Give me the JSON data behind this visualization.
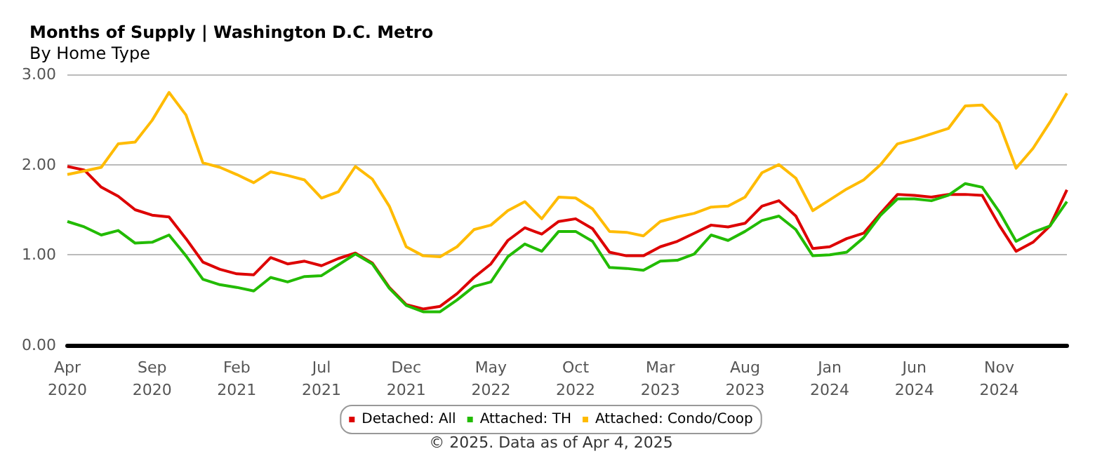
{
  "chart_data": {
    "type": "line",
    "title": "Months of Supply | Washington D.C. Metro",
    "subtitle": "By Home Type",
    "annotations": [
      "© 2025. Data as of Apr 4, 2025"
    ],
    "categories": [
      "Apr 2020",
      null,
      null,
      null,
      null,
      "Sep 2020",
      null,
      null,
      null,
      null,
      "Feb 2021",
      null,
      null,
      null,
      null,
      "Jul 2021",
      null,
      null,
      null,
      null,
      "Dec 2021",
      null,
      null,
      null,
      null,
      "May 2022",
      null,
      null,
      null,
      null,
      "Oct 2022",
      null,
      null,
      null,
      null,
      "Mar 2023",
      null,
      null,
      null,
      null,
      "Aug 2023",
      null,
      null,
      null,
      null,
      "Jan 2024",
      null,
      null,
      null,
      null,
      "Jun 2024",
      null,
      null,
      null,
      null,
      "Nov 2024",
      null,
      null,
      null,
      null
    ],
    "ylim": [
      0,
      3
    ],
    "yticks": [
      {
        "value": 0,
        "label": "0.00"
      },
      {
        "value": 1,
        "label": "1.00"
      },
      {
        "value": 2,
        "label": "2.00"
      },
      {
        "value": 3,
        "label": "3.00"
      }
    ],
    "grid": "y",
    "legend": "bottom",
    "marker": "none",
    "line_style": "solid",
    "series": [
      {
        "name": "Detached: All",
        "color": "#dd0000",
        "values": [
          1.98,
          1.94,
          1.75,
          1.65,
          1.5,
          1.44,
          1.42,
          1.18,
          0.92,
          0.84,
          0.79,
          0.78,
          0.97,
          0.9,
          0.93,
          0.88,
          0.96,
          1.02,
          0.91,
          0.64,
          0.45,
          0.4,
          0.43,
          0.57,
          0.75,
          0.9,
          1.16,
          1.3,
          1.23,
          1.37,
          1.4,
          1.29,
          1.03,
          0.99,
          0.99,
          1.09,
          1.15,
          1.24,
          1.33,
          1.31,
          1.35,
          1.54,
          1.6,
          1.43,
          1.07,
          1.09,
          1.18,
          1.24,
          1.46,
          1.67,
          1.66,
          1.64,
          1.67,
          1.67,
          1.66,
          1.33,
          1.04,
          1.14,
          1.32,
          1.72
        ]
      },
      {
        "name": "Attached: TH",
        "color": "#22bb00",
        "values": [
          1.37,
          1.31,
          1.22,
          1.27,
          1.13,
          1.14,
          1.22,
          0.99,
          0.73,
          0.67,
          0.64,
          0.6,
          0.75,
          0.7,
          0.76,
          0.77,
          0.89,
          1.01,
          0.9,
          0.63,
          0.44,
          0.37,
          0.37,
          0.5,
          0.65,
          0.7,
          0.98,
          1.12,
          1.04,
          1.26,
          1.26,
          1.15,
          0.86,
          0.85,
          0.83,
          0.93,
          0.94,
          1.01,
          1.22,
          1.16,
          1.26,
          1.38,
          1.43,
          1.28,
          0.99,
          1.0,
          1.03,
          1.19,
          1.44,
          1.62,
          1.62,
          1.6,
          1.66,
          1.79,
          1.75,
          1.48,
          1.15,
          1.25,
          1.32,
          1.59
        ]
      },
      {
        "name": "Attached: Condo/Coop",
        "color": "#ffbb00",
        "values": [
          1.89,
          1.93,
          1.97,
          2.23,
          2.25,
          2.49,
          2.8,
          2.55,
          2.02,
          1.97,
          1.89,
          1.8,
          1.92,
          1.88,
          1.83,
          1.63,
          1.7,
          1.98,
          1.84,
          1.54,
          1.09,
          0.99,
          0.98,
          1.09,
          1.28,
          1.33,
          1.49,
          1.59,
          1.4,
          1.64,
          1.63,
          1.51,
          1.26,
          1.25,
          1.21,
          1.37,
          1.42,
          1.46,
          1.53,
          1.54,
          1.64,
          1.91,
          2.0,
          1.85,
          1.49,
          1.61,
          1.73,
          1.83,
          2.0,
          2.23,
          2.28,
          2.34,
          2.4,
          2.65,
          2.66,
          2.46,
          1.96,
          2.18,
          2.47,
          2.79
        ]
      }
    ]
  }
}
